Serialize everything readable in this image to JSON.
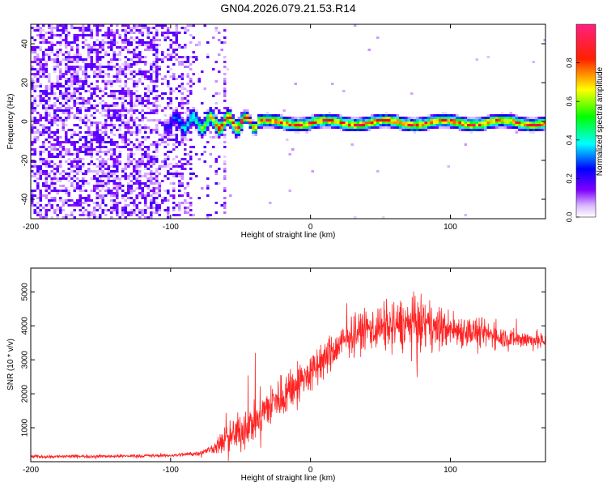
{
  "figure": {
    "title": "GN04.2026.079.21.53.R14"
  },
  "chart_data": [
    {
      "type": "heatmap",
      "title": "GN04.2026.079.21.53.R14",
      "xlabel": "Height of straight line (km)",
      "ylabel": "Frequency (Hz)",
      "xlim": [
        -200,
        168
      ],
      "ylim": [
        -50,
        50
      ],
      "x_ticks": [
        -200,
        -100,
        0,
        100
      ],
      "x_tick_labels": [
        "-200",
        "-100",
        "0",
        "100"
      ],
      "y_ticks": [
        -40,
        -20,
        0,
        20,
        40
      ],
      "y_tick_labels": [
        "-40",
        "-20",
        "0",
        "20",
        "40"
      ],
      "grid": false,
      "colorbar": {
        "label": "Normalized spectral amplitude",
        "range": [
          0,
          1
        ],
        "ticks": [
          0.0,
          0.2,
          0.4,
          0.6,
          0.8
        ],
        "tick_labels": [
          "0.0",
          "0.2",
          "0.4",
          "0.6",
          "0.8"
        ],
        "colormap": [
          "#ffffff",
          "#7f00ff",
          "#0000ff",
          "#00ffff",
          "#00ff00",
          "#ffff00",
          "#ff0000",
          "#ff0080"
        ]
      },
      "description_features": {
        "noise_region_x": [
          -200,
          -62
        ],
        "noise_band_frequency": [
          -50,
          50
        ],
        "carrier_line_start_x": -105,
        "carrier_line_frequency": 0,
        "carrier_line_peak_amplitude": 0.95,
        "isolated_bright_line_x": -62
      }
    },
    {
      "type": "line",
      "xlabel": "Height of straight line (km)",
      "ylabel": "SNR (10 * v/v)",
      "xlim": [
        -200,
        168
      ],
      "ylim": [
        0,
        5700
      ],
      "x_ticks": [
        -200,
        -100,
        0,
        100
      ],
      "x_tick_labels": [
        "-200",
        "-100",
        "0",
        "100"
      ],
      "y_ticks": [
        1000,
        2000,
        3000,
        4000,
        5000
      ],
      "y_tick_labels": [
        "1000",
        "2000",
        "3000",
        "4000",
        "5000"
      ],
      "grid": false,
      "series": [
        {
          "color": "#ff2222",
          "x": [
            -200,
            -150,
            -100,
            -80,
            -70,
            -60,
            -50,
            -40,
            -30,
            -20,
            -10,
            0,
            10,
            20,
            30,
            40,
            50,
            60,
            70,
            80,
            90,
            100,
            120,
            140,
            168
          ],
          "values": [
            150,
            160,
            180,
            250,
            380,
            650,
            900,
            1200,
            1600,
            1950,
            2300,
            2600,
            3000,
            3400,
            3750,
            3900,
            3950,
            4000,
            4050,
            4050,
            3950,
            3900,
            3800,
            3650,
            3550
          ],
          "noise_amplitude": [
            40,
            40,
            40,
            60,
            100,
            400,
            450,
            500,
            550,
            550,
            500,
            450,
            450,
            450,
            450,
            500,
            550,
            600,
            650,
            600,
            500,
            450,
            350,
            250,
            200
          ]
        }
      ]
    }
  ]
}
